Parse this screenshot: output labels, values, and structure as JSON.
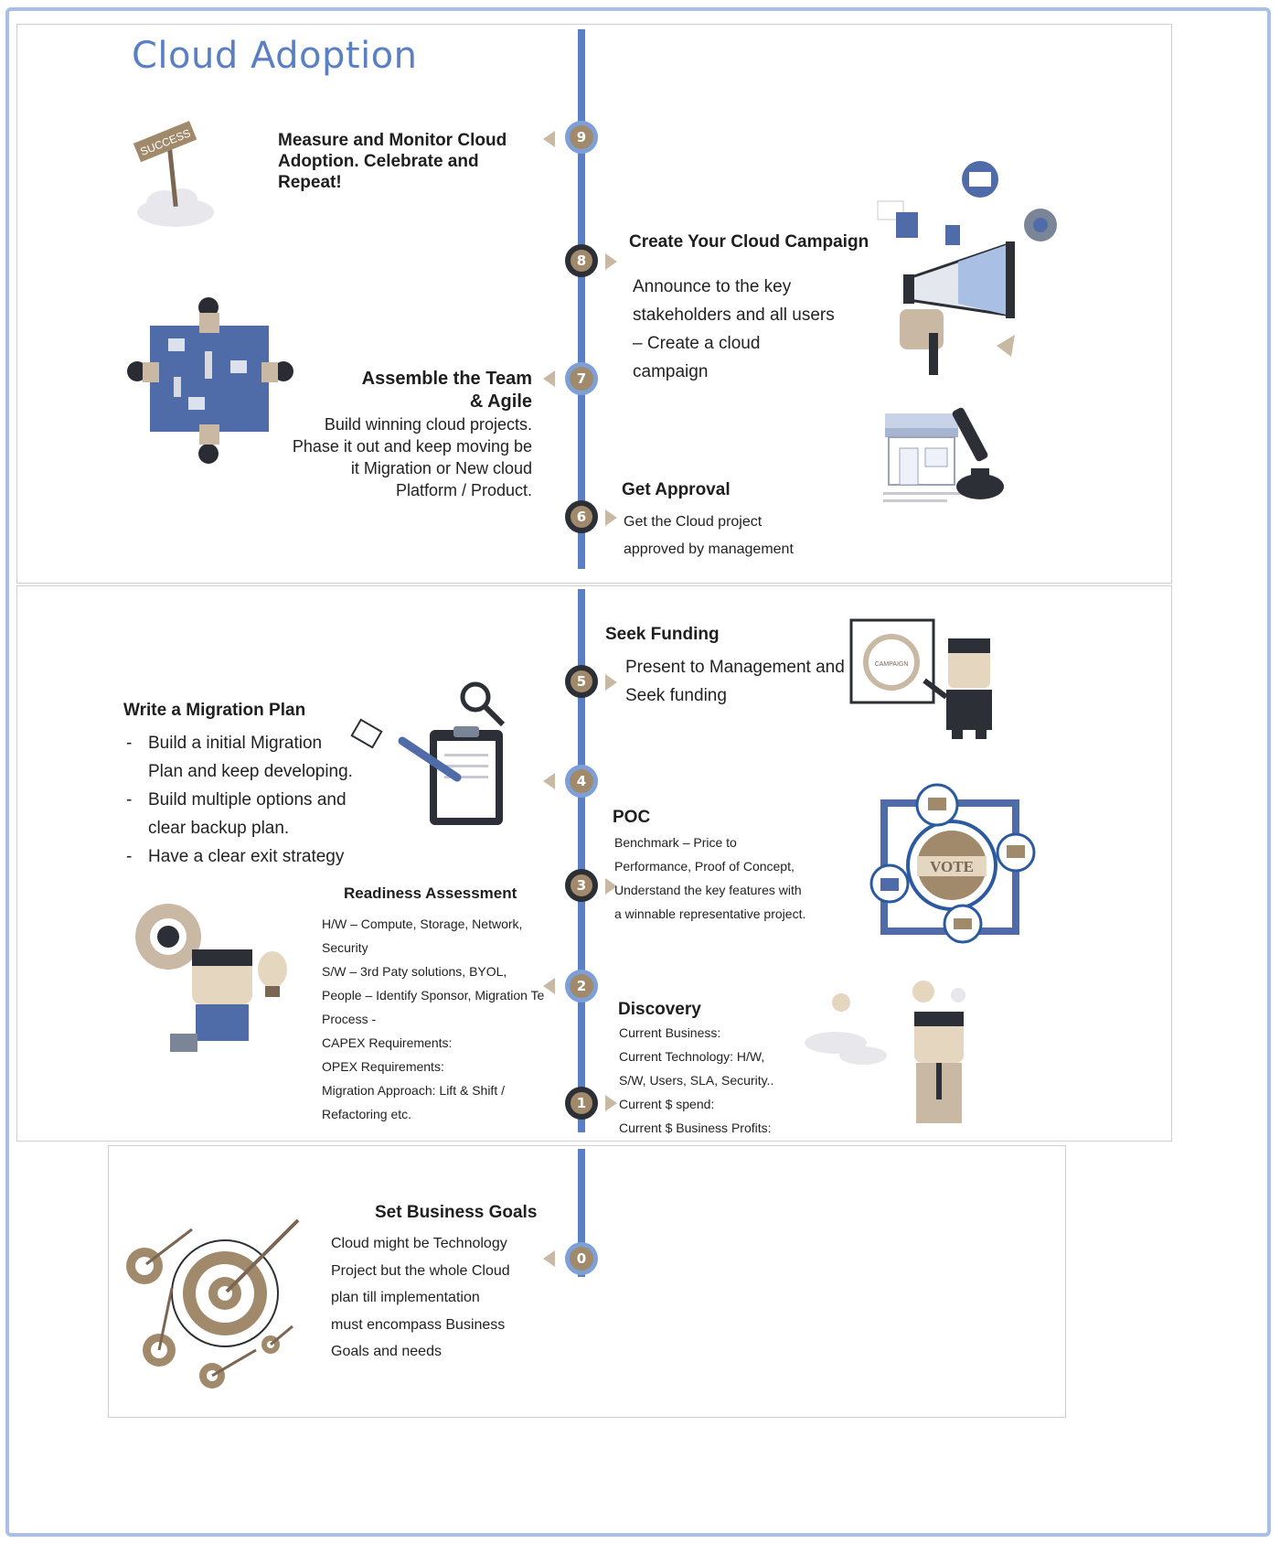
{
  "title": "Cloud Adoption",
  "steps": [
    {
      "num": "9",
      "heading_lines": [
        "Measure and Monitor Cloud",
        "Adoption. Celebrate and",
        "Repeat!"
      ],
      "body_lines": []
    },
    {
      "num": "8",
      "heading_lines": [
        "Create Your Cloud  Campaign"
      ],
      "body_lines": [
        "Announce to the key",
        "stakeholders and all users",
        "– Create a cloud",
        "campaign"
      ]
    },
    {
      "num": "7",
      "heading_lines": [
        "Assemble the Team",
        "& Agile"
      ],
      "body_lines": [
        "Build winning cloud projects.",
        "Phase it out and keep moving be",
        "it Migration or New cloud",
        "Platform / Product."
      ]
    },
    {
      "num": "6",
      "heading_lines": [
        "Get Approval"
      ],
      "body_lines": [
        "Get the Cloud project",
        "approved by management"
      ]
    },
    {
      "num": "5",
      "heading_lines": [
        "Seek Funding"
      ],
      "body_lines": [
        "Present to Management and",
        "Seek funding"
      ]
    },
    {
      "num": "4",
      "heading_lines": [
        "Write a Migration Plan"
      ],
      "body_lines": [
        "Build a initial Migration",
        "Plan and keep developing.",
        "Build multiple options and",
        "clear backup plan.",
        "Have a clear exit strategy"
      ]
    },
    {
      "num": "3",
      "heading_lines": [
        "POC"
      ],
      "body_lines": [
        "Benchmark – Price to",
        "Performance, Proof of Concept,",
        "Understand the key features with",
        "a winnable representative project."
      ]
    },
    {
      "num": "2",
      "heading_lines": [
        "Readiness Assessment"
      ],
      "body_lines": [
        "H/W – Compute, Storage, Network,",
        "Security",
        "S/W – 3rd Paty solutions, BYOL,",
        "People – Identify Sponsor, Migration Te",
        "Process -",
        "CAPEX Requirements:",
        "OPEX Requirements:",
        "Migration Approach: Lift & Shift /",
        "Refactoring etc."
      ]
    },
    {
      "num": "1",
      "heading_lines": [
        "Discovery"
      ],
      "body_lines": [
        "Current Business:",
        "Current Technology: H/W,",
        "S/W, Users, SLA, Security..",
        "Current $ spend:",
        "Current $ Business Profits:"
      ]
    },
    {
      "num": "0",
      "heading_lines": [
        "Set Business Goals"
      ],
      "body_lines": [
        "Cloud might be Technology",
        "Project but the whole Cloud",
        "plan till implementation",
        "must encompass Business",
        "Goals and needs"
      ]
    }
  ],
  "illustrations": {
    "sign_text": "SUCCESS",
    "vote_text": "VOTE",
    "chart_text": "CAMPAIGN"
  },
  "colors": {
    "axis": "#5b7fc4",
    "node": "#a08a6b",
    "accent_tan": "#c9b9a4",
    "title": "#5b7fc4"
  }
}
